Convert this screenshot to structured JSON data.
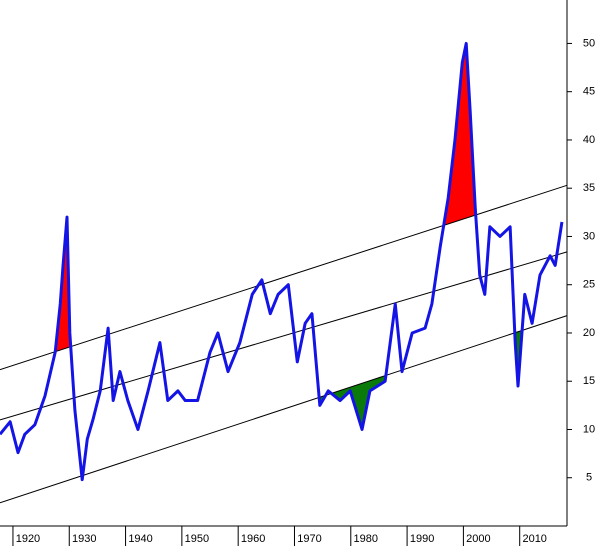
{
  "chart_data": {
    "type": "line",
    "x": [
      1917.7,
      1919.5,
      1920.9,
      1922.1,
      1923.9,
      1925.7,
      1927.5,
      1928.4,
      1928.9,
      1929.6,
      1930.1,
      1931.0,
      1931.9,
      1932.3,
      1933.2,
      1934.2,
      1935.5,
      1936.9,
      1937.8,
      1939.0,
      1940.4,
      1942.2,
      1944.0,
      1946.1,
      1947.5,
      1949.3,
      1950.6,
      1952.8,
      1955.0,
      1956.4,
      1958.2,
      1960.3,
      1962.5,
      1964.2,
      1965.7,
      1967.1,
      1968.9,
      1970.5,
      1971.9,
      1973.1,
      1974.5,
      1976.0,
      1978.1,
      1979.9,
      1982.0,
      1983.4,
      1986.1,
      1987.9,
      1989.1,
      1990.9,
      1993.2,
      1994.4,
      1995.9,
      1997.3,
      1998.5,
      1999.8,
      2000.5,
      2001.2,
      2002.1,
      2002.9,
      2003.8,
      2004.7,
      2006.5,
      2008.3,
      2009.2,
      2009.7,
      2010.9,
      2012.2,
      2013.6,
      2015.4,
      2016.3,
      2017.5
    ],
    "series": [
      {
        "color": "#1414e6",
        "values": [
          9.5,
          10.8,
          7.6,
          9.5,
          10.5,
          13.5,
          18,
          23,
          27,
          32,
          20,
          12,
          7,
          4.8,
          9,
          11,
          14,
          20.5,
          13,
          16,
          13,
          10,
          14,
          19,
          13,
          14,
          13,
          13,
          18,
          20,
          16,
          19,
          24,
          25.5,
          22,
          24,
          25,
          17,
          21,
          22,
          12.5,
          14,
          13,
          14,
          10,
          14,
          15,
          23,
          16,
          20,
          20.5,
          23,
          29,
          34,
          40,
          48,
          50,
          43,
          33,
          26,
          24,
          31,
          30,
          31,
          19,
          14.5,
          24,
          21,
          26,
          28,
          27,
          31.5
        ]
      }
    ],
    "trend_lines": [
      {
        "color": "#000000",
        "x": [
          1917.7,
          2018.4
        ],
        "values": [
          16.2,
          35.3
        ]
      },
      {
        "color": "#000000",
        "x": [
          1917.7,
          2018.4
        ],
        "values": [
          11,
          28.4
        ]
      },
      {
        "color": "#000000",
        "x": [
          1917.7,
          2018.4
        ],
        "values": [
          2.4,
          21.8
        ]
      }
    ],
    "above_color": "#ff0000",
    "below_color": "#0a7a0a",
    "xlim": [
      1917.7,
      2018.4
    ],
    "ylim": [
      0,
      54.5
    ],
    "xticks": [
      1920,
      1930,
      1940,
      1950,
      1960,
      1970,
      1980,
      1990,
      2000,
      2010
    ],
    "yticks": [
      5,
      10,
      15,
      20,
      25,
      30,
      35,
      40,
      45,
      50
    ]
  }
}
